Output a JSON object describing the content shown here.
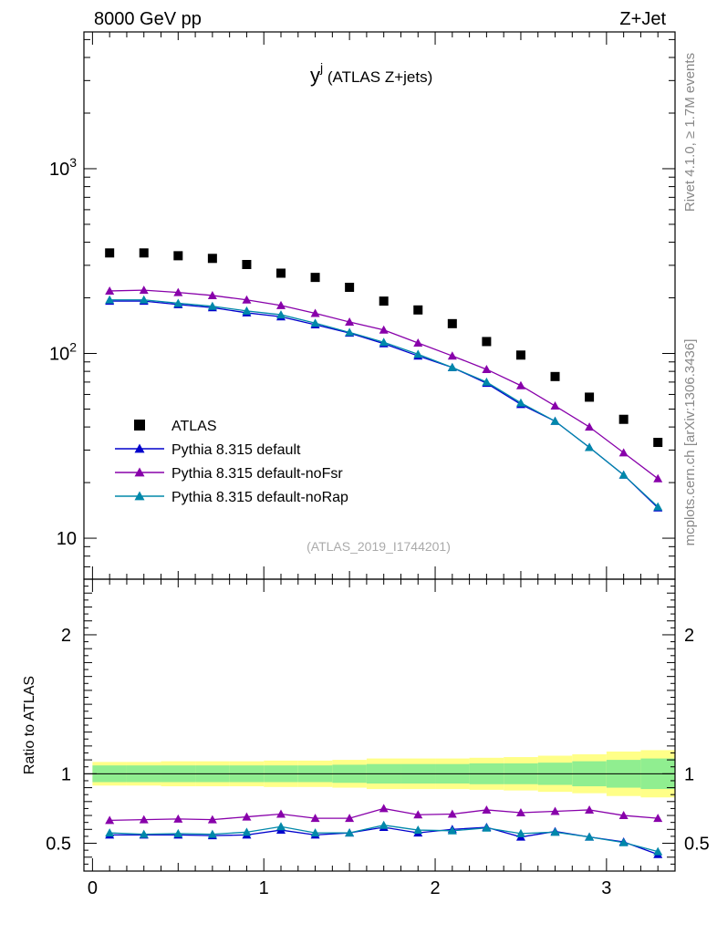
{
  "header": {
    "left": "8000 GeV pp",
    "right": "Z+Jet"
  },
  "plot_title": {
    "main": "y",
    "sup": "j",
    "sub": " (ATLAS Z+jets)"
  },
  "side_text": {
    "top": "Rivet 4.1.0, ≥ 1.7M events",
    "bottom": "mcplots.cern.ch [arXiv:1306.3436]"
  },
  "analysis_label": "(ATLAS_2019_I1744201)",
  "colors": {
    "data": "#000000",
    "default": "#0000cc",
    "noFsr": "#8800aa",
    "noRap": "#0088aa",
    "band_stat": "#90ee90",
    "band_tot": "#ffff88"
  },
  "chart_data": [
    {
      "type": "line",
      "title": "y^j (ATLAS Z+jets)",
      "xlabel": "",
      "ylabel": "",
      "yscale": "log",
      "xlim": [
        -0.05,
        3.4
      ],
      "ylim": [
        6,
        5500
      ],
      "ytick_labels": [
        "10",
        "10²",
        "10³"
      ],
      "legend_position": "center-left",
      "x": [
        0.1,
        0.3,
        0.5,
        0.7,
        0.9,
        1.1,
        1.3,
        1.5,
        1.7,
        1.9,
        2.1,
        2.3,
        2.5,
        2.7,
        2.9,
        3.1,
        3.3
      ],
      "series": [
        {
          "name": "ATLAS",
          "key": "data",
          "marker": "square",
          "values": [
            350,
            350,
            338,
            327,
            303,
            272,
            258,
            228,
            192,
            172,
            145,
            116,
            98,
            75,
            58,
            44,
            33
          ]
        },
        {
          "name": "Pythia 8.315 default",
          "key": "default",
          "marker": "triangle",
          "values": [
            192,
            192,
            184,
            177,
            166,
            158,
            143,
            129,
            113,
            97,
            84,
            69,
            53,
            43,
            31,
            22,
            14.6
          ]
        },
        {
          "name": "Pythia 8.315 default-noFsr",
          "key": "noFsr",
          "marker": "triangle",
          "values": [
            218,
            220,
            214,
            206,
            195,
            182,
            165,
            148,
            134,
            114,
            97,
            82,
            67,
            52,
            40,
            29,
            21
          ]
        },
        {
          "name": "Pythia 8.315 default-noRap",
          "key": "noRap",
          "marker": "triangle",
          "values": [
            195,
            195,
            187,
            180,
            170,
            162,
            146,
            130,
            115,
            99,
            84,
            70,
            54,
            43,
            31,
            22,
            14.8
          ]
        }
      ]
    },
    {
      "type": "line",
      "title": "",
      "xlabel": "",
      "ylabel": "Ratio to ATLAS",
      "xlim": [
        -0.05,
        3.4
      ],
      "ylim": [
        0.3,
        2.4
      ],
      "xtick_labels": [
        "0",
        "1",
        "2",
        "3"
      ],
      "ytick_labels": [
        "0.5",
        "1",
        "2"
      ],
      "x": [
        0.1,
        0.3,
        0.5,
        0.7,
        0.9,
        1.1,
        1.3,
        1.5,
        1.7,
        1.9,
        2.1,
        2.3,
        2.5,
        2.7,
        2.9,
        3.1,
        3.3
      ],
      "band_edges": [
        0,
        0.2,
        0.4,
        0.6,
        0.8,
        1.0,
        1.2,
        1.4,
        1.6,
        1.8,
        2.0,
        2.2,
        2.4,
        2.6,
        2.8,
        3.0,
        3.2,
        3.4
      ],
      "band_stat_halfwidth": [
        0.06,
        0.06,
        0.06,
        0.06,
        0.06,
        0.06,
        0.06,
        0.065,
        0.07,
        0.07,
        0.07,
        0.075,
        0.075,
        0.08,
        0.09,
        0.1,
        0.11
      ],
      "band_total_halfwidth": [
        0.085,
        0.085,
        0.09,
        0.09,
        0.09,
        0.095,
        0.095,
        0.1,
        0.11,
        0.11,
        0.11,
        0.115,
        0.12,
        0.13,
        0.14,
        0.16,
        0.17
      ],
      "series": [
        {
          "name": "Pythia 8.315 default",
          "key": "default",
          "values": [
            0.56,
            0.56,
            0.56,
            0.555,
            0.56,
            0.595,
            0.56,
            0.575,
            0.615,
            0.575,
            0.6,
            0.615,
            0.545,
            0.585,
            0.545,
            0.51,
            0.42
          ]
        },
        {
          "name": "Pythia 8.315 default-noFsr",
          "key": "noFsr",
          "values": [
            0.665,
            0.67,
            0.675,
            0.67,
            0.69,
            0.71,
            0.68,
            0.68,
            0.75,
            0.705,
            0.71,
            0.74,
            0.72,
            0.73,
            0.74,
            0.7,
            0.68
          ]
        },
        {
          "name": "Pythia 8.315 default-noRap",
          "key": "noRap",
          "values": [
            0.575,
            0.565,
            0.57,
            0.565,
            0.58,
            0.62,
            0.575,
            0.575,
            0.63,
            0.595,
            0.59,
            0.61,
            0.57,
            0.58,
            0.545,
            0.505,
            0.44
          ]
        }
      ]
    }
  ]
}
